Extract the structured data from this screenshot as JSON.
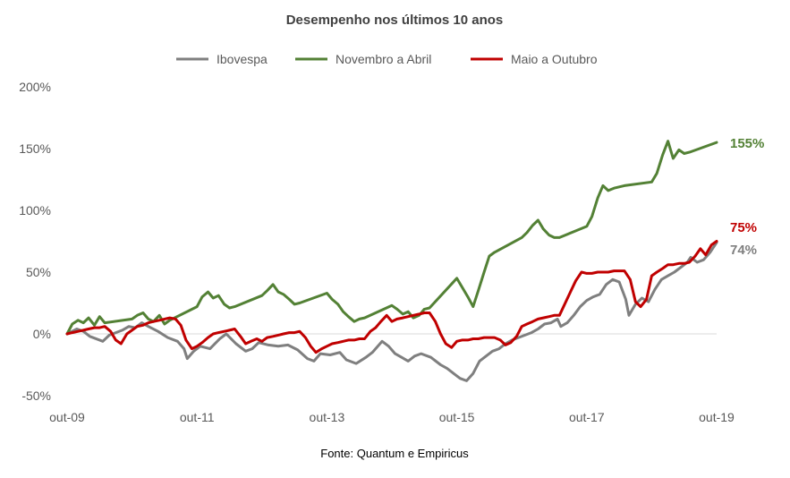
{
  "chart_data": {
    "type": "line",
    "title": "Desempenho nos últimos 10 anos",
    "source": "Fonte: Quantum e Empiricus",
    "x_tick_labels": [
      "out-09",
      "out-11",
      "out-13",
      "out-15",
      "out-17",
      "out-19"
    ],
    "x_ticks": [
      2009.75,
      2011.75,
      2013.75,
      2015.75,
      2017.75,
      2019.75
    ],
    "xlim": [
      2009.75,
      2019.75
    ],
    "y_tick_labels": [
      "-50%",
      "0%",
      "50%",
      "100%",
      "150%",
      "200%"
    ],
    "y_ticks": [
      -50,
      0,
      50,
      100,
      150,
      200
    ],
    "ylim": [
      -50,
      200
    ],
    "legend_position": "top",
    "grid": false,
    "series": [
      {
        "name": "Ibovespa",
        "color": "#7f7f7f",
        "end_label": "74%",
        "points": [
          [
            2009.75,
            0
          ],
          [
            2009.9,
            4
          ],
          [
            2010.0,
            2
          ],
          [
            2010.1,
            -2
          ],
          [
            2010.3,
            -6
          ],
          [
            2010.4,
            -1
          ],
          [
            2010.6,
            3
          ],
          [
            2010.7,
            6
          ],
          [
            2010.8,
            5
          ],
          [
            2010.9,
            9
          ],
          [
            2011.0,
            6
          ],
          [
            2011.15,
            2
          ],
          [
            2011.3,
            -3
          ],
          [
            2011.45,
            -6
          ],
          [
            2011.55,
            -12
          ],
          [
            2011.6,
            -20
          ],
          [
            2011.7,
            -14
          ],
          [
            2011.8,
            -10
          ],
          [
            2011.95,
            -12
          ],
          [
            2012.1,
            -4
          ],
          [
            2012.2,
            0
          ],
          [
            2012.35,
            -8
          ],
          [
            2012.5,
            -14
          ],
          [
            2012.6,
            -12
          ],
          [
            2012.7,
            -7
          ],
          [
            2012.85,
            -9
          ],
          [
            2013.0,
            -10
          ],
          [
            2013.15,
            -9
          ],
          [
            2013.3,
            -13
          ],
          [
            2013.45,
            -20
          ],
          [
            2013.55,
            -22
          ],
          [
            2013.65,
            -16
          ],
          [
            2013.8,
            -17
          ],
          [
            2013.95,
            -15
          ],
          [
            2014.05,
            -21
          ],
          [
            2014.2,
            -24
          ],
          [
            2014.35,
            -19
          ],
          [
            2014.45,
            -15
          ],
          [
            2014.6,
            -6
          ],
          [
            2014.7,
            -10
          ],
          [
            2014.8,
            -16
          ],
          [
            2014.9,
            -19
          ],
          [
            2015.0,
            -22
          ],
          [
            2015.1,
            -18
          ],
          [
            2015.2,
            -16
          ],
          [
            2015.35,
            -19
          ],
          [
            2015.5,
            -25
          ],
          [
            2015.6,
            -28
          ],
          [
            2015.7,
            -32
          ],
          [
            2015.8,
            -36
          ],
          [
            2015.9,
            -38
          ],
          [
            2016.0,
            -32
          ],
          [
            2016.1,
            -22
          ],
          [
            2016.2,
            -18
          ],
          [
            2016.3,
            -14
          ],
          [
            2016.4,
            -12
          ],
          [
            2016.5,
            -8
          ],
          [
            2016.6,
            -5
          ],
          [
            2016.7,
            -3
          ],
          [
            2016.8,
            -1
          ],
          [
            2016.9,
            1
          ],
          [
            2017.0,
            4
          ],
          [
            2017.1,
            8
          ],
          [
            2017.2,
            9
          ],
          [
            2017.3,
            12
          ],
          [
            2017.35,
            6
          ],
          [
            2017.45,
            9
          ],
          [
            2017.55,
            15
          ],
          [
            2017.65,
            22
          ],
          [
            2017.75,
            27
          ],
          [
            2017.85,
            30
          ],
          [
            2017.95,
            32
          ],
          [
            2018.05,
            40
          ],
          [
            2018.15,
            44
          ],
          [
            2018.25,
            42
          ],
          [
            2018.35,
            28
          ],
          [
            2018.4,
            15
          ],
          [
            2018.5,
            24
          ],
          [
            2018.6,
            29
          ],
          [
            2018.7,
            26
          ],
          [
            2018.8,
            36
          ],
          [
            2018.9,
            44
          ],
          [
            2019.0,
            47
          ],
          [
            2019.1,
            50
          ],
          [
            2019.2,
            54
          ],
          [
            2019.3,
            58
          ],
          [
            2019.35,
            62
          ],
          [
            2019.45,
            58
          ],
          [
            2019.55,
            60
          ],
          [
            2019.65,
            66
          ],
          [
            2019.75,
            74
          ]
        ]
      },
      {
        "name": "Novembro a Abril",
        "color": "#538135",
        "end_label": "155%",
        "points": [
          [
            2009.75,
            0
          ],
          [
            2009.83,
            8
          ],
          [
            2009.92,
            11
          ],
          [
            2010.0,
            9
          ],
          [
            2010.08,
            13
          ],
          [
            2010.17,
            7
          ],
          [
            2010.25,
            14
          ],
          [
            2010.33,
            9
          ],
          [
            2010.75,
            12
          ],
          [
            2010.83,
            15
          ],
          [
            2010.92,
            17
          ],
          [
            2011.0,
            12
          ],
          [
            2011.08,
            10
          ],
          [
            2011.17,
            15
          ],
          [
            2011.25,
            8
          ],
          [
            2011.33,
            11
          ],
          [
            2011.75,
            22
          ],
          [
            2011.83,
            30
          ],
          [
            2011.92,
            34
          ],
          [
            2012.0,
            29
          ],
          [
            2012.08,
            31
          ],
          [
            2012.17,
            24
          ],
          [
            2012.25,
            21
          ],
          [
            2012.33,
            22
          ],
          [
            2012.75,
            31
          ],
          [
            2012.83,
            35
          ],
          [
            2012.92,
            40
          ],
          [
            2013.0,
            34
          ],
          [
            2013.08,
            32
          ],
          [
            2013.17,
            28
          ],
          [
            2013.25,
            24
          ],
          [
            2013.33,
            25
          ],
          [
            2013.75,
            33
          ],
          [
            2013.83,
            28
          ],
          [
            2013.92,
            24
          ],
          [
            2014.0,
            18
          ],
          [
            2014.08,
            14
          ],
          [
            2014.17,
            10
          ],
          [
            2014.25,
            12
          ],
          [
            2014.33,
            13
          ],
          [
            2014.75,
            23
          ],
          [
            2014.83,
            20
          ],
          [
            2014.92,
            16
          ],
          [
            2015.0,
            18
          ],
          [
            2015.08,
            13
          ],
          [
            2015.17,
            15
          ],
          [
            2015.25,
            20
          ],
          [
            2015.33,
            21
          ],
          [
            2015.75,
            45
          ],
          [
            2015.83,
            38
          ],
          [
            2015.92,
            30
          ],
          [
            2016.0,
            22
          ],
          [
            2016.08,
            35
          ],
          [
            2016.17,
            50
          ],
          [
            2016.25,
            63
          ],
          [
            2016.33,
            66
          ],
          [
            2016.75,
            78
          ],
          [
            2016.83,
            82
          ],
          [
            2016.92,
            88
          ],
          [
            2017.0,
            92
          ],
          [
            2017.08,
            85
          ],
          [
            2017.17,
            80
          ],
          [
            2017.25,
            78
          ],
          [
            2017.33,
            78
          ],
          [
            2017.75,
            87
          ],
          [
            2017.83,
            95
          ],
          [
            2017.92,
            110
          ],
          [
            2018.0,
            120
          ],
          [
            2018.08,
            116
          ],
          [
            2018.17,
            118
          ],
          [
            2018.25,
            119
          ],
          [
            2018.33,
            120
          ],
          [
            2018.75,
            123
          ],
          [
            2018.83,
            130
          ],
          [
            2018.92,
            145
          ],
          [
            2019.0,
            156
          ],
          [
            2019.08,
            142
          ],
          [
            2019.17,
            149
          ],
          [
            2019.25,
            146
          ],
          [
            2019.33,
            147
          ],
          [
            2019.75,
            155
          ]
        ]
      },
      {
        "name": "Maio a Outubro",
        "color": "#c00000",
        "end_label": "75%",
        "points": [
          [
            2009.75,
            0
          ],
          [
            2009.83,
            1
          ],
          [
            2009.92,
            2
          ],
          [
            2010.0,
            3
          ],
          [
            2010.08,
            4
          ],
          [
            2010.17,
            5
          ],
          [
            2010.25,
            5
          ],
          [
            2010.33,
            6
          ],
          [
            2010.42,
            2
          ],
          [
            2010.5,
            -5
          ],
          [
            2010.58,
            -8
          ],
          [
            2010.67,
            0
          ],
          [
            2010.75,
            3
          ],
          [
            2010.83,
            6
          ],
          [
            2010.92,
            7
          ],
          [
            2011.0,
            9
          ],
          [
            2011.08,
            10
          ],
          [
            2011.17,
            11
          ],
          [
            2011.25,
            12
          ],
          [
            2011.33,
            13
          ],
          [
            2011.42,
            12
          ],
          [
            2011.5,
            7
          ],
          [
            2011.58,
            -5
          ],
          [
            2011.67,
            -12
          ],
          [
            2011.75,
            -10
          ],
          [
            2011.83,
            -7
          ],
          [
            2011.92,
            -3
          ],
          [
            2012.0,
            0
          ],
          [
            2012.08,
            1
          ],
          [
            2012.17,
            2
          ],
          [
            2012.25,
            3
          ],
          [
            2012.33,
            4
          ],
          [
            2012.42,
            -2
          ],
          [
            2012.5,
            -8
          ],
          [
            2012.58,
            -6
          ],
          [
            2012.67,
            -4
          ],
          [
            2012.75,
            -6
          ],
          [
            2012.83,
            -3
          ],
          [
            2012.92,
            -2
          ],
          [
            2013.0,
            -1
          ],
          [
            2013.08,
            0
          ],
          [
            2013.17,
            1
          ],
          [
            2013.25,
            1
          ],
          [
            2013.33,
            2
          ],
          [
            2013.42,
            -3
          ],
          [
            2013.5,
            -10
          ],
          [
            2013.58,
            -15
          ],
          [
            2013.67,
            -12
          ],
          [
            2013.75,
            -10
          ],
          [
            2013.83,
            -8
          ],
          [
            2013.92,
            -7
          ],
          [
            2014.0,
            -6
          ],
          [
            2014.08,
            -5
          ],
          [
            2014.17,
            -5
          ],
          [
            2014.25,
            -4
          ],
          [
            2014.33,
            -4
          ],
          [
            2014.42,
            2
          ],
          [
            2014.5,
            5
          ],
          [
            2014.58,
            10
          ],
          [
            2014.67,
            15
          ],
          [
            2014.75,
            10
          ],
          [
            2014.83,
            12
          ],
          [
            2014.92,
            13
          ],
          [
            2015.0,
            14
          ],
          [
            2015.08,
            15
          ],
          [
            2015.17,
            16
          ],
          [
            2015.25,
            17
          ],
          [
            2015.33,
            17
          ],
          [
            2015.42,
            10
          ],
          [
            2015.5,
            0
          ],
          [
            2015.58,
            -8
          ],
          [
            2015.67,
            -11
          ],
          [
            2015.75,
            -6
          ],
          [
            2015.83,
            -5
          ],
          [
            2015.92,
            -5
          ],
          [
            2016.0,
            -4
          ],
          [
            2016.08,
            -4
          ],
          [
            2016.17,
            -3
          ],
          [
            2016.25,
            -3
          ],
          [
            2016.33,
            -3
          ],
          [
            2016.42,
            -5
          ],
          [
            2016.5,
            -9
          ],
          [
            2016.58,
            -7
          ],
          [
            2016.67,
            -2
          ],
          [
            2016.75,
            6
          ],
          [
            2016.83,
            8
          ],
          [
            2016.92,
            10
          ],
          [
            2017.0,
            12
          ],
          [
            2017.08,
            13
          ],
          [
            2017.17,
            14
          ],
          [
            2017.25,
            15
          ],
          [
            2017.33,
            15
          ],
          [
            2017.42,
            25
          ],
          [
            2017.5,
            34
          ],
          [
            2017.58,
            43
          ],
          [
            2017.67,
            50
          ],
          [
            2017.75,
            49
          ],
          [
            2017.83,
            49
          ],
          [
            2017.92,
            50
          ],
          [
            2018.0,
            50
          ],
          [
            2018.08,
            50
          ],
          [
            2018.17,
            51
          ],
          [
            2018.25,
            51
          ],
          [
            2018.33,
            51
          ],
          [
            2018.42,
            44
          ],
          [
            2018.5,
            26
          ],
          [
            2018.58,
            22
          ],
          [
            2018.67,
            28
          ],
          [
            2018.75,
            47
          ],
          [
            2018.83,
            50
          ],
          [
            2018.92,
            53
          ],
          [
            2019.0,
            56
          ],
          [
            2019.08,
            56
          ],
          [
            2019.17,
            57
          ],
          [
            2019.25,
            57
          ],
          [
            2019.33,
            58
          ],
          [
            2019.42,
            63
          ],
          [
            2019.5,
            69
          ],
          [
            2019.58,
            64
          ],
          [
            2019.67,
            72
          ],
          [
            2019.75,
            75
          ]
        ]
      }
    ]
  }
}
